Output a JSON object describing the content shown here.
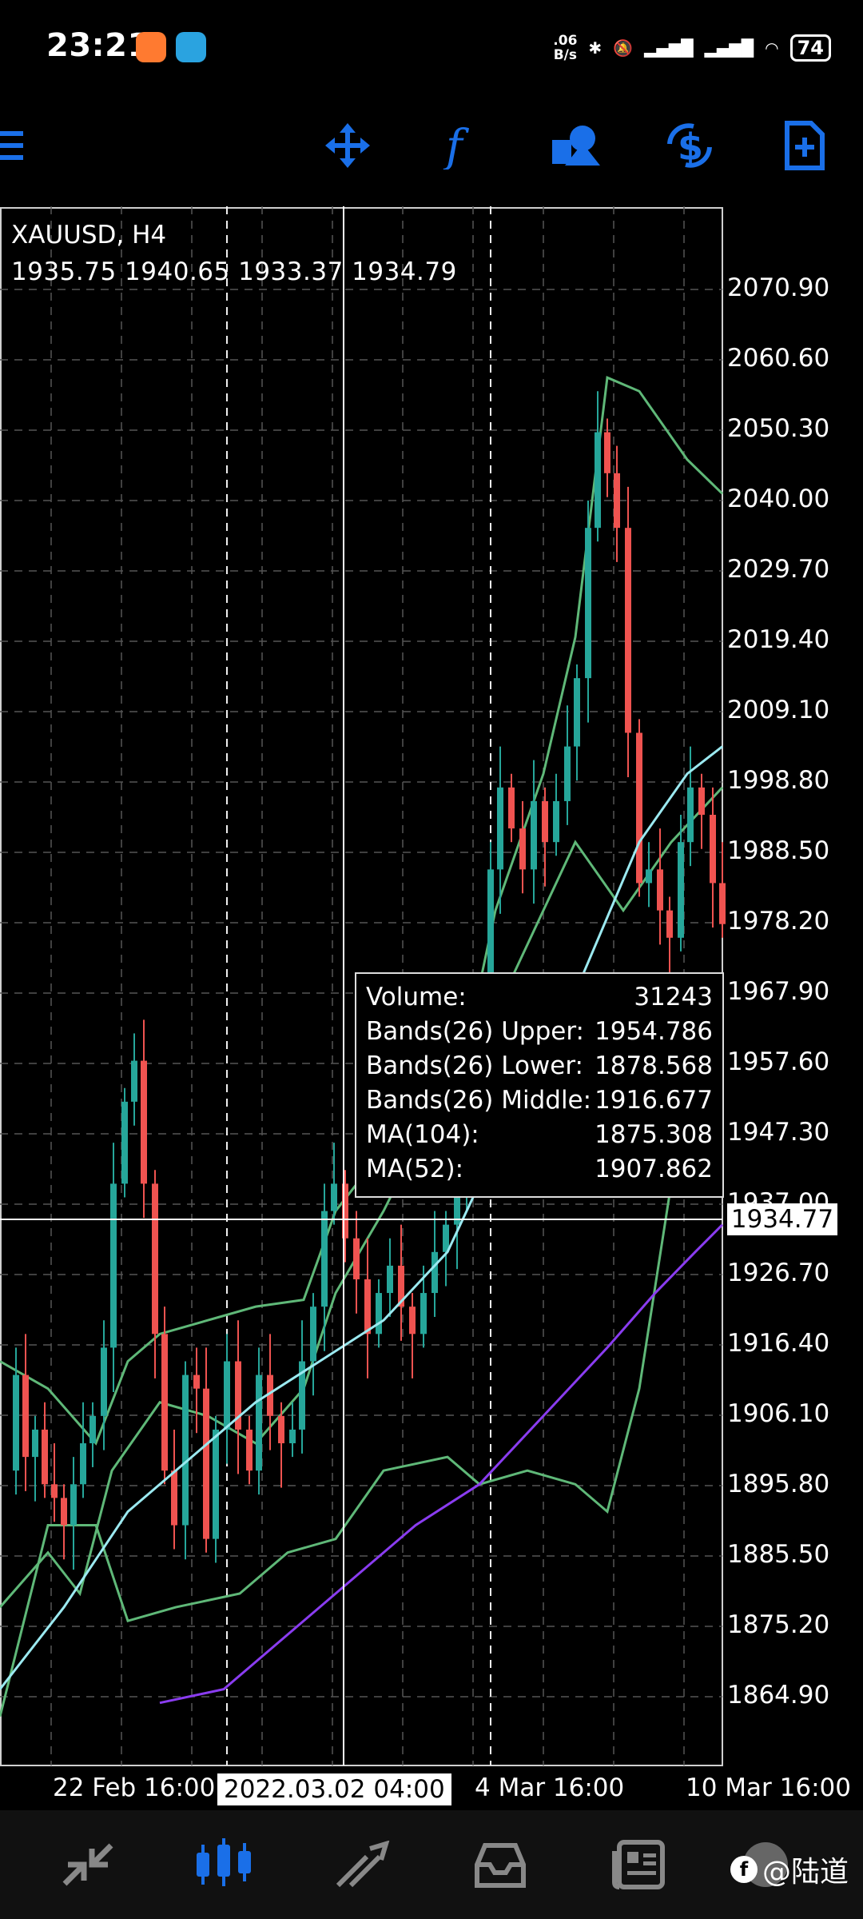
{
  "status_bar": {
    "time": "23:21",
    "net_speed_value": ".06",
    "net_speed_unit": "B/s",
    "battery": "74"
  },
  "chart_header": {
    "symbol": "XAUUSD, H4",
    "ohlc": "1935.75 1940.65 1933.37 1934.79"
  },
  "price_axis": [
    "2070.90",
    "2060.60",
    "2050.30",
    "2040.00",
    "2029.70",
    "2019.40",
    "2009.10",
    "1998.80",
    "1988.50",
    "1978.20",
    "1967.90",
    "1957.60",
    "1947.30",
    "1937.00",
    "1926.70",
    "1916.40",
    "1906.10",
    "1895.80",
    "1885.50",
    "1875.20",
    "1864.90"
  ],
  "crosshair": {
    "price": "1934.77",
    "time": "2022.03.02 04:00"
  },
  "time_axis": [
    "22 Feb 16:00",
    "4 Mar 16:00",
    "10 Mar 16:00"
  ],
  "info_box": [
    {
      "label": "Volume:",
      "value": "31243"
    },
    {
      "label": "Bands(26) Upper:",
      "value": "1954.786"
    },
    {
      "label": "Bands(26) Lower:",
      "value": "1878.568"
    },
    {
      "label": "Bands(26) Middle:",
      "value": "1916.677"
    },
    {
      "label": "MA(104):",
      "value": "1875.308"
    },
    {
      "label": "MA(52):",
      "value": "1907.862"
    }
  ],
  "watermark": "@陆道",
  "colors": {
    "accent": "#1a6fe8",
    "bull": "#26a69a",
    "bear": "#ef5350",
    "bands": "#5fb878",
    "ma52": "#9be9f0",
    "ma104": "#8a3cf0"
  },
  "icons": {
    "toolbar": [
      "menu-icon",
      "crosshair-icon",
      "indicators-icon",
      "objects-icon",
      "symbol-icon",
      "new-order-icon"
    ],
    "nav": [
      "quotes-icon",
      "chart-icon",
      "trade-icon",
      "history-icon",
      "news-icon"
    ]
  }
}
